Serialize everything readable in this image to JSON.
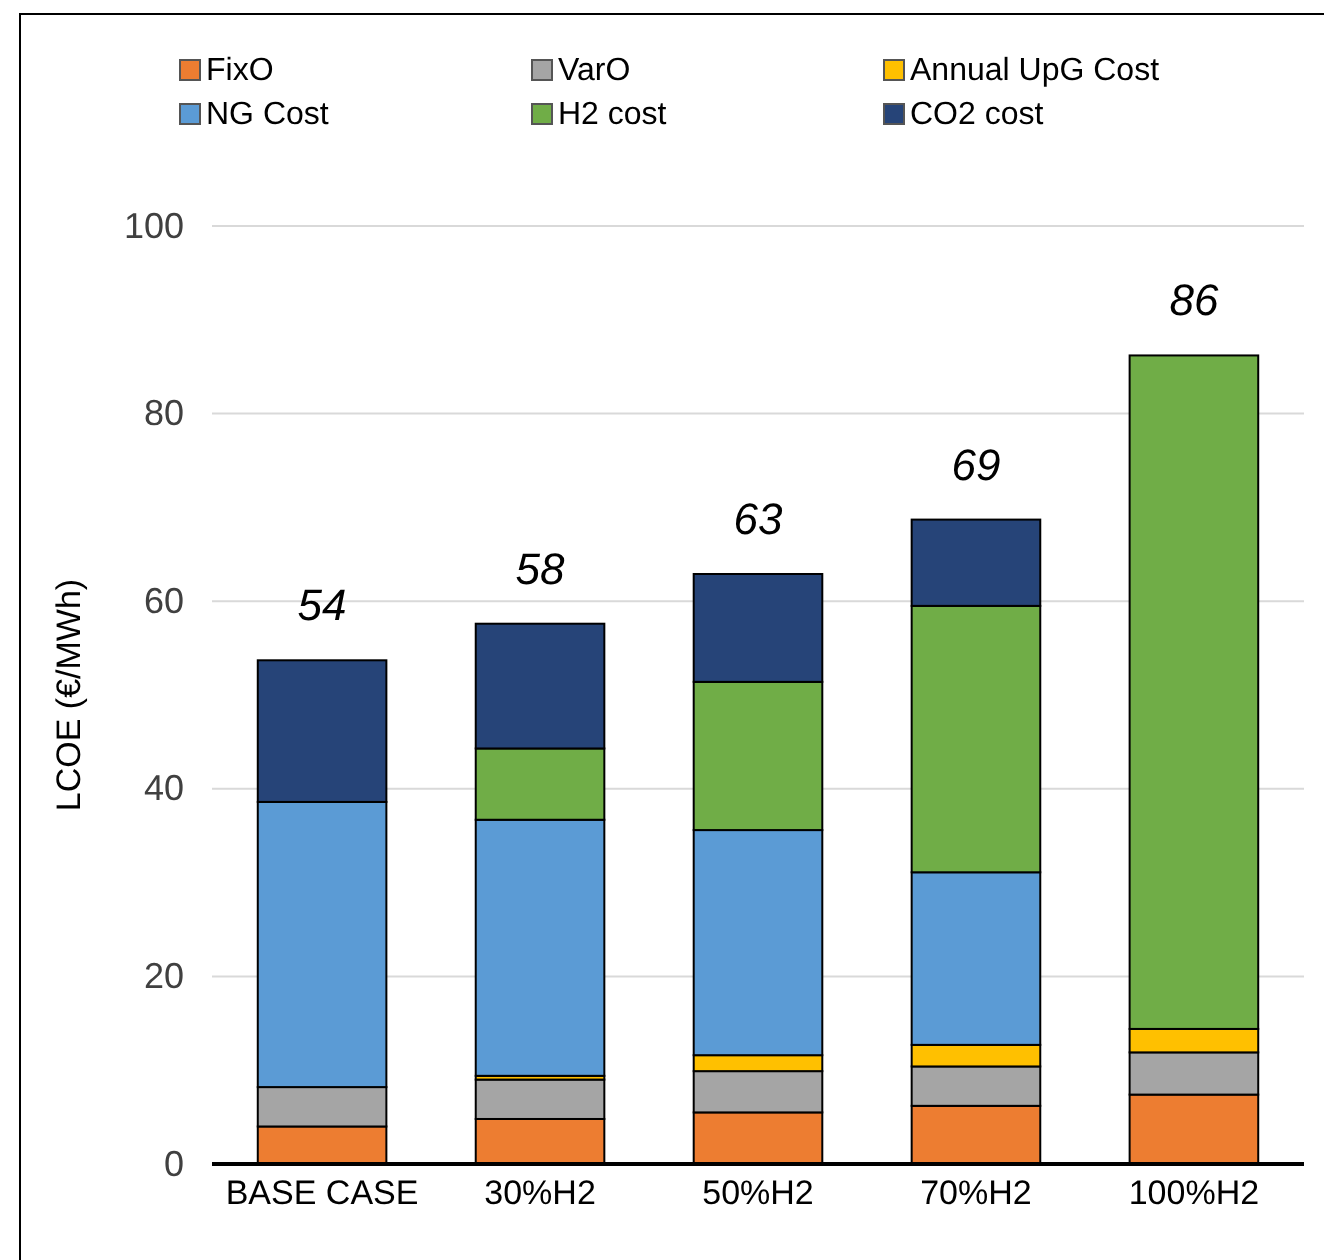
{
  "chart_data": {
    "type": "bar",
    "stacked": true,
    "ylabel": "LCOE (€/MWh)",
    "categories": [
      "BASE CASE",
      "30%H2",
      "50%H2",
      "70%H2",
      "100%H2"
    ],
    "series": [
      {
        "name": "FixO",
        "color": "#ed7d31",
        "values": [
          4.0,
          4.8,
          5.5,
          6.2,
          7.4
        ]
      },
      {
        "name": "VarO",
        "color": "#a5a5a5",
        "values": [
          4.2,
          4.2,
          4.4,
          4.2,
          4.5
        ]
      },
      {
        "name": "Annual UpG Cost",
        "color": "#ffc000",
        "values": [
          0,
          0.4,
          1.7,
          2.3,
          2.5
        ]
      },
      {
        "name": "NG Cost",
        "color": "#5b9bd5",
        "values": [
          30.4,
          27.3,
          24.0,
          18.4,
          0
        ]
      },
      {
        "name": "H2 cost",
        "color": "#70ad47",
        "values": [
          0,
          7.6,
          15.8,
          28.4,
          71.8
        ]
      },
      {
        "name": "CO2 cost",
        "color": "#264478",
        "values": [
          15.1,
          13.3,
          11.5,
          9.2,
          0
        ]
      }
    ],
    "totals": [
      "54",
      "58",
      "63",
      "69",
      "86"
    ],
    "ylim": [
      0,
      100
    ],
    "yticks": [
      0,
      20,
      40,
      60,
      80,
      100
    ],
    "grid": "y",
    "legend": "top"
  }
}
